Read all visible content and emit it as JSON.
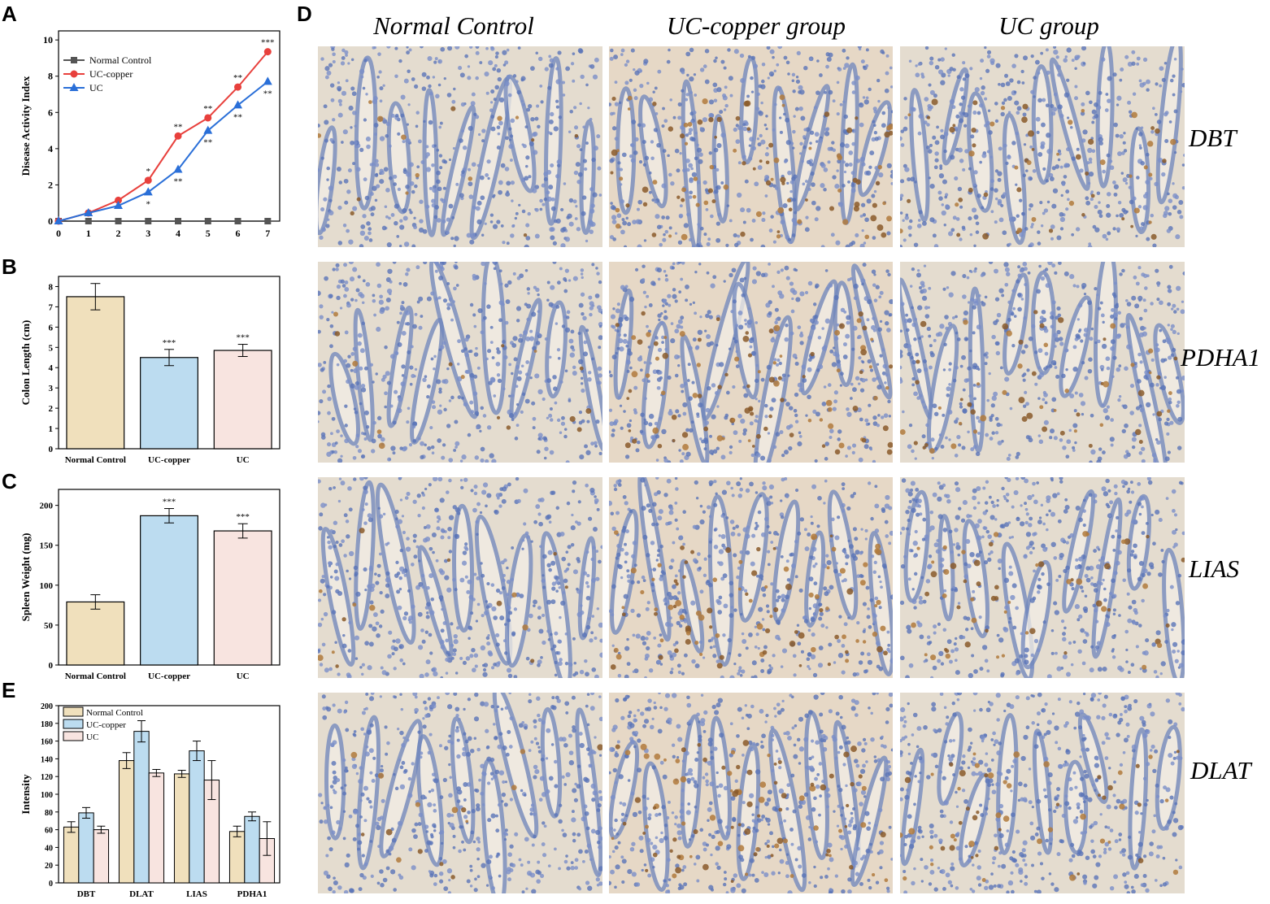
{
  "panel_letters": {
    "a": "A",
    "b": "B",
    "c": "C",
    "d": "D",
    "e": "E"
  },
  "colors": {
    "normal": "#f0e0bc",
    "ucc": "#bcdcf0",
    "uc": "#f8e4e0",
    "line_normal": "#555555",
    "line_ucc": "#e8403c",
    "line_uc": "#2a6fd8"
  },
  "chart_data": [
    {
      "id": "A",
      "type": "line",
      "ylabel": "Disease Activity Index",
      "x": [
        0,
        1,
        2,
        3,
        4,
        5,
        6,
        7
      ],
      "x_ticks": [
        "0",
        "1",
        "2",
        "3",
        "4",
        "5",
        "6",
        "7"
      ],
      "ylim": [
        0,
        10.5
      ],
      "y_ticks": [
        "0",
        "2",
        "4",
        "6",
        "8",
        "10"
      ],
      "legend_placement": "top-left",
      "series": [
        {
          "name": "Normal Control",
          "marker": "square",
          "values": [
            0,
            0,
            0,
            0,
            0,
            0,
            0,
            0
          ]
        },
        {
          "name": "UC-copper",
          "marker": "circle",
          "values": [
            0,
            0.45,
            1.15,
            2.25,
            4.7,
            5.7,
            7.4,
            9.35
          ]
        },
        {
          "name": "UC",
          "marker": "triangle",
          "values": [
            0,
            0.45,
            0.85,
            1.6,
            2.85,
            5.0,
            6.4,
            7.7
          ]
        }
      ],
      "annotations_ucc": [
        "",
        "",
        "",
        "*",
        "**",
        "**",
        "**",
        "***"
      ],
      "annotations_uc": [
        "",
        "",
        "",
        "*",
        "**",
        "**",
        "**",
        "**"
      ]
    },
    {
      "id": "B",
      "type": "bar",
      "ylabel": "Colon Length (cm)",
      "categories": [
        "Normal Control",
        "UC-copper",
        "UC"
      ],
      "values": [
        7.5,
        4.5,
        4.85
      ],
      "errors": [
        0.65,
        0.4,
        0.3
      ],
      "ylim": [
        0,
        8.5
      ],
      "y_ticks": [
        "0",
        "1",
        "2",
        "3",
        "4",
        "5",
        "6",
        "7",
        "8"
      ],
      "annotations": [
        "",
        "***",
        "***"
      ]
    },
    {
      "id": "C",
      "type": "bar",
      "ylabel": "Spleen Weight (mg)",
      "categories": [
        "Normal Control",
        "UC-copper",
        "UC"
      ],
      "values": [
        79,
        187,
        168
      ],
      "errors": [
        9,
        9,
        9
      ],
      "ylim": [
        0,
        220
      ],
      "y_ticks": [
        "0",
        "50",
        "100",
        "150",
        "200"
      ],
      "annotations": [
        "",
        "***",
        "***"
      ]
    },
    {
      "id": "E",
      "type": "bar",
      "ylabel": "Intensity",
      "categories": [
        "DBT",
        "DLAT",
        "LIAS",
        "PDHA1"
      ],
      "ylim": [
        0,
        200
      ],
      "y_ticks": [
        "0",
        "20",
        "40",
        "60",
        "80",
        "100",
        "120",
        "140",
        "160",
        "180",
        "200"
      ],
      "legend_placement": "top-left",
      "series": [
        {
          "name": "Normal Control",
          "values": [
            63,
            138,
            123,
            58
          ],
          "errors": [
            6,
            9,
            4,
            6
          ]
        },
        {
          "name": "UC-copper",
          "values": [
            79,
            171,
            149,
            75
          ],
          "errors": [
            6,
            12,
            11,
            5
          ]
        },
        {
          "name": "UC",
          "values": [
            60,
            124,
            116,
            50
          ],
          "errors": [
            4,
            4,
            22,
            19
          ]
        }
      ]
    }
  ],
  "micrographs": {
    "columns": [
      "Normal Control",
      "UC-copper group",
      "UC group"
    ],
    "rows": [
      "DBT",
      "PDHA1",
      "LIAS",
      "DLAT"
    ]
  }
}
